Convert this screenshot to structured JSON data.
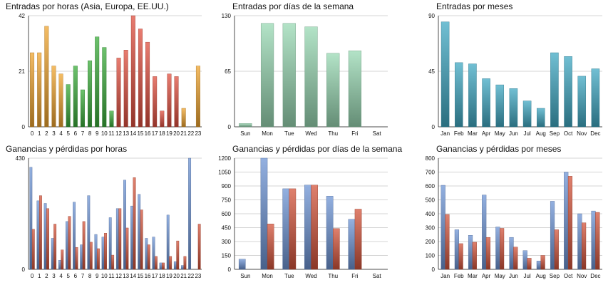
{
  "colors": {
    "orange": "#f0a530",
    "green": "#3cae3c",
    "red": "#e05040",
    "mint": "#9ad9b4",
    "teal": "#41a9c4",
    "blue": "#6f95d6",
    "rust": "#d4553c"
  },
  "chart_data": [
    {
      "type": "bar",
      "title": "Entradas por horas (Asia, Europa, EE.UU.)",
      "categories": [
        "0",
        "1",
        "2",
        "3",
        "4",
        "5",
        "6",
        "7",
        "8",
        "9",
        "10",
        "11",
        "12",
        "13",
        "14",
        "15",
        "16",
        "17",
        "18",
        "19",
        "20",
        "21",
        "22",
        "23"
      ],
      "values": [
        28,
        28,
        38,
        23,
        20,
        16,
        23,
        14,
        25,
        34,
        30,
        6,
        26,
        29,
        42,
        37,
        32,
        19,
        6,
        20,
        19,
        7,
        0,
        23
      ],
      "bar_colors": [
        "orange",
        "orange",
        "orange",
        "orange",
        "orange",
        "green",
        "green",
        "green",
        "green",
        "green",
        "green",
        "green",
        "red",
        "red",
        "red",
        "red",
        "red",
        "red",
        "red",
        "red",
        "red",
        "orange",
        "orange",
        "orange"
      ],
      "ylim": [
        0,
        42
      ],
      "yticks": [
        "0",
        "21",
        "42"
      ],
      "grid": true
    },
    {
      "type": "bar",
      "title": "Entradas por días de la semana",
      "categories": [
        "Sun",
        "Mon",
        "Tue",
        "Wed",
        "Thu",
        "Fri",
        "Sat"
      ],
      "values": [
        4,
        121,
        121,
        117,
        86,
        89,
        0
      ],
      "ylim": [
        0,
        130
      ],
      "yticks": [
        "0",
        "65",
        "130"
      ],
      "grid": true
    },
    {
      "type": "bar",
      "title": "Entradas por meses",
      "categories": [
        "Jan",
        "Feb",
        "Mar",
        "Apr",
        "May",
        "Jun",
        "Jul",
        "Aug",
        "Sep",
        "Oct",
        "Nov",
        "Dec"
      ],
      "values": [
        85,
        52,
        51,
        39,
        34,
        31,
        21,
        15,
        60,
        57,
        41,
        47
      ],
      "ylim": [
        0,
        90
      ],
      "yticks": [
        "0",
        "45",
        "90"
      ],
      "grid": true
    },
    {
      "type": "bar",
      "title": "Ganancias y pérdidas por horas",
      "categories": [
        "0",
        "1",
        "2",
        "3",
        "4",
        "5",
        "6",
        "7",
        "8",
        "9",
        "10",
        "11",
        "12",
        "13",
        "14",
        "15",
        "16",
        "17",
        "18",
        "19",
        "20",
        "21",
        "22",
        "23"
      ],
      "series": [
        {
          "values": [
            395,
            265,
            255,
            120,
            35,
            185,
            260,
            95,
            285,
            135,
            125,
            200,
            235,
            345,
            245,
            290,
            120,
            125,
            25,
            210,
            30,
            15,
            430,
            0
          ]
        },
        {
          "values": [
            155,
            285,
            235,
            175,
            75,
            205,
            85,
            185,
            105,
            80,
            140,
            55,
            235,
            160,
            355,
            230,
            95,
            50,
            25,
            50,
            110,
            50,
            0,
            175
          ]
        }
      ],
      "ylim": [
        0,
        430
      ],
      "yticks": [
        "0",
        "430"
      ],
      "grid": true
    },
    {
      "type": "bar",
      "title": "Ganancias y pérdidas por días de la semana",
      "categories": [
        "Sun",
        "Mon",
        "Tue",
        "Wed",
        "Thu",
        "Fri",
        "Sat"
      ],
      "series": [
        {
          "values": [
            110,
            1200,
            870,
            910,
            790,
            540,
            0
          ]
        },
        {
          "values": [
            0,
            490,
            870,
            910,
            440,
            650,
            0
          ]
        }
      ],
      "ylim": [
        0,
        1200
      ],
      "yticks": [
        "0",
        "150",
        "300",
        "450",
        "600",
        "750",
        "900",
        "1050",
        "1200"
      ],
      "grid": true
    },
    {
      "type": "bar",
      "title": "Ganancias y pérdidas por meses",
      "categories": [
        "Jan",
        "Feb",
        "Mar",
        "Apr",
        "May",
        "Jun",
        "Jul",
        "Aug",
        "Sep",
        "Oct",
        "Nov",
        "Dec"
      ],
      "series": [
        {
          "values": [
            605,
            285,
            245,
            535,
            305,
            230,
            135,
            60,
            490,
            700,
            400,
            420
          ]
        },
        {
          "values": [
            395,
            185,
            195,
            230,
            295,
            160,
            80,
            100,
            285,
            670,
            335,
            410
          ]
        }
      ],
      "ylim": [
        0,
        800
      ],
      "yticks": [
        "0",
        "100",
        "200",
        "300",
        "400",
        "500",
        "600",
        "700",
        "800"
      ],
      "grid": true
    }
  ]
}
